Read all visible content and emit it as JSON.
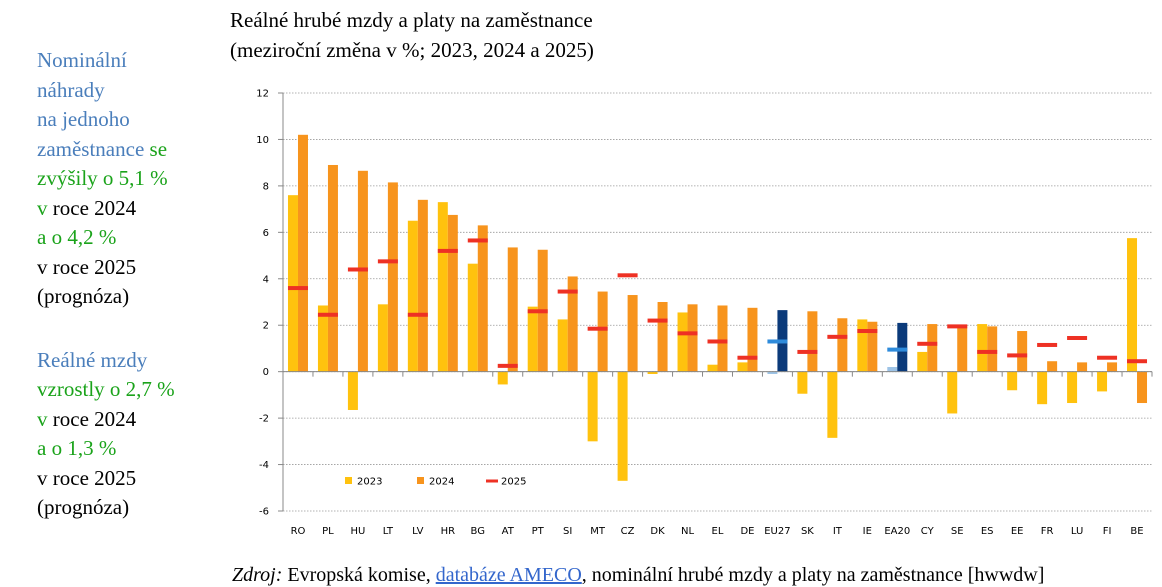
{
  "sidebar": {
    "blocks": [
      {
        "lines": [
          [
            {
              "text": "Nominální",
              "color": "#4a7ebb"
            }
          ],
          [
            {
              "text": "náhrady",
              "color": "#4a7ebb"
            }
          ],
          [
            {
              "text": "na jednoho",
              "color": "#4a7ebb"
            }
          ],
          [
            {
              "text": "zaměstnance",
              "color": "#4a7ebb"
            },
            {
              "text": " se",
              "color": "#1aa31a"
            }
          ],
          [
            {
              "text": "zvýšily o 5,1 %",
              "color": "#1aa31a"
            }
          ],
          [
            {
              "text": "v",
              "color": "#1aa31a"
            },
            {
              "text": " roce 2024",
              "color": "#000000"
            }
          ],
          [
            {
              "text": "a o 4,2 %",
              "color": "#1aa31a"
            }
          ],
          [
            {
              "text": "v roce 2025",
              "color": "#000000"
            }
          ],
          [
            {
              "text": "(prognóza)",
              "color": "#000000"
            }
          ]
        ]
      },
      {
        "lines": [
          [
            {
              "text": "Reálné mzdy",
              "color": "#4a7ebb"
            }
          ],
          [
            {
              "text": "vzrostly o 2,7 %",
              "color": "#1aa31a"
            }
          ],
          [
            {
              "text": "v",
              "color": "#1aa31a"
            },
            {
              "text": " roce 2024",
              "color": "#000000"
            }
          ],
          [
            {
              "text": "a o 1,3 %",
              "color": "#1aa31a"
            }
          ],
          [
            {
              "text": "v roce 2025",
              "color": "#000000"
            }
          ],
          [
            {
              "text": "(prognóza)",
              "color": "#000000"
            }
          ]
        ]
      }
    ]
  },
  "source": [
    {
      "text": "Zdroj:",
      "style": "italic"
    },
    {
      "text": " Evropská komise, "
    },
    {
      "text": "databáze AMECO",
      "link": true,
      "color": "#3366cc"
    },
    {
      "text": ", nominální hrubé mzdy a platy na zaměstnance [hwwdw]"
    }
  ],
  "chart_data": {
    "type": "bar",
    "title": "Reálné hrubé mzdy a platy na zaměstnance",
    "subtitle": "(meziroční změna v %; 2023, 2024 a 2025)",
    "categories": [
      "RO",
      "PL",
      "HU",
      "LT",
      "LV",
      "HR",
      "BG",
      "AT",
      "PT",
      "SI",
      "MT",
      "CZ",
      "DK",
      "NL",
      "EL",
      "DE",
      "EU27",
      "SK",
      "IT",
      "IE",
      "EA20",
      "CY",
      "SE",
      "ES",
      "EE",
      "FR",
      "LU",
      "FI",
      "BE"
    ],
    "highlight_categories": [
      "EU27",
      "EA20"
    ],
    "series": [
      {
        "name": "2023",
        "style": "bar",
        "color": "#ffc20e",
        "highlight_color": "#9dc3e6",
        "values": [
          7.6,
          2.85,
          -1.65,
          2.9,
          6.5,
          7.3,
          4.65,
          -0.55,
          2.8,
          2.25,
          -3.0,
          -4.7,
          -0.1,
          2.55,
          0.3,
          0.4,
          -0.1,
          -0.95,
          -2.85,
          2.25,
          0.2,
          0.85,
          -1.8,
          2.05,
          -0.8,
          -1.4,
          -1.35,
          -0.85,
          5.75
        ]
      },
      {
        "name": "2024",
        "style": "bar",
        "color": "#f7941d",
        "highlight_color": "#0b3a7a",
        "values": [
          10.2,
          8.9,
          8.65,
          8.15,
          7.4,
          6.75,
          6.3,
          5.35,
          5.25,
          4.1,
          3.45,
          3.3,
          3.0,
          2.9,
          2.85,
          2.75,
          2.65,
          2.6,
          2.3,
          2.15,
          2.1,
          2.05,
          2.0,
          1.95,
          1.75,
          0.45,
          0.4,
          0.4,
          -1.35
        ]
      },
      {
        "name": "2025",
        "style": "dash",
        "color": "#ee3124",
        "highlight_color": "#2e8bdb",
        "values": [
          3.6,
          2.45,
          4.4,
          4.75,
          2.45,
          5.2,
          5.65,
          0.25,
          2.6,
          3.45,
          1.85,
          4.15,
          2.2,
          1.65,
          1.3,
          0.6,
          1.3,
          0.85,
          1.5,
          1.75,
          0.95,
          1.2,
          1.95,
          0.85,
          0.7,
          1.15,
          1.45,
          0.6,
          0.45
        ]
      }
    ],
    "ylim": [
      -6,
      12
    ],
    "yticks": [
      -6,
      -4,
      -2,
      0,
      2,
      4,
      6,
      8,
      10,
      12
    ],
    "grid": true,
    "legend": "lower left"
  }
}
